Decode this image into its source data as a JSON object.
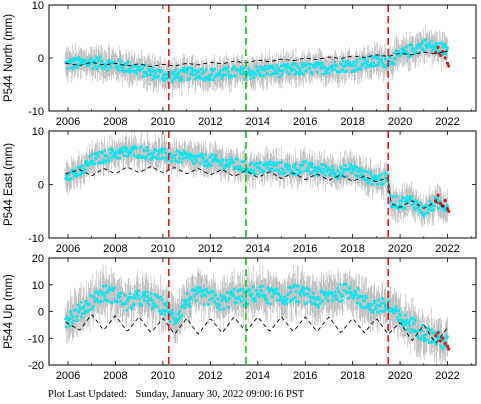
{
  "footer": {
    "label": "Plot Last Updated:",
    "timestamp": "Sunday, January 30, 2022 09:00:16 PST"
  },
  "chart_data": [
    {
      "type": "scatter",
      "ylabel": "P544 North (mm)",
      "xlim": [
        2005.2,
        2023.2
      ],
      "ylim": [
        -10,
        10
      ],
      "yticks": [
        -10,
        0,
        10
      ],
      "xticks": [
        2006,
        2008,
        2010,
        2012,
        2014,
        2016,
        2018,
        2020,
        2022
      ],
      "grid": false,
      "vlines": [
        {
          "x": 2010.25,
          "color": "#d62020",
          "style": "dashed"
        },
        {
          "x": 2013.5,
          "color": "#22bb22",
          "style": "dashed"
        },
        {
          "x": 2019.5,
          "color": "#d62020",
          "style": "dashed"
        }
      ],
      "series": [
        {
          "role": "observations",
          "color": "#00e5f0",
          "error_color": "#b4b4b4",
          "error_mm": 2.6,
          "x": [
            2005.9,
            2006.5,
            2007.0,
            2007.5,
            2008.0,
            2008.5,
            2009.0,
            2009.5,
            2010.0,
            2010.5,
            2011.0,
            2011.5,
            2012.0,
            2012.5,
            2013.0,
            2013.5,
            2014.0,
            2014.5,
            2015.0,
            2015.5,
            2016.0,
            2016.5,
            2017.0,
            2017.5,
            2018.0,
            2018.5,
            2019.0,
            2019.5,
            2020.0,
            2020.5,
            2021.0,
            2021.5,
            2022.0
          ],
          "y": [
            -1.2,
            -1.0,
            -0.8,
            -1.0,
            -1.3,
            -1.7,
            -2.2,
            -2.8,
            -3.2,
            -3.4,
            -3.0,
            -2.8,
            -3.1,
            -3.0,
            -2.7,
            -2.9,
            -2.6,
            -2.4,
            -2.4,
            -2.2,
            -2.1,
            -2.0,
            -1.8,
            -1.5,
            -1.4,
            -1.0,
            -0.7,
            -0.5,
            0.5,
            1.5,
            2.5,
            2.0,
            1.5
          ]
        },
        {
          "role": "model",
          "color": "#000000",
          "style": "dashed",
          "x": [
            2005.9,
            2006.5,
            2007.0,
            2007.5,
            2008.0,
            2008.5,
            2009.0,
            2009.5,
            2010.0,
            2010.5,
            2011.0,
            2011.5,
            2012.0,
            2012.5,
            2013.0,
            2013.5,
            2014.0,
            2014.5,
            2015.0,
            2015.5,
            2016.0,
            2016.5,
            2017.0,
            2017.5,
            2018.0,
            2018.5,
            2019.0,
            2019.5,
            2020.0,
            2020.5,
            2021.0,
            2021.5,
            2022.0
          ],
          "y": [
            -1.0,
            -1.4,
            -0.8,
            -1.3,
            -1.0,
            -1.5,
            -1.1,
            -1.6,
            -1.2,
            -1.5,
            -1.0,
            -1.3,
            -0.8,
            -1.1,
            -0.6,
            -0.9,
            -0.4,
            -0.7,
            -0.2,
            -0.5,
            0.0,
            -0.3,
            0.2,
            -0.1,
            0.4,
            0.1,
            0.6,
            0.3,
            0.9,
            0.6,
            1.1,
            0.8,
            1.3
          ]
        },
        {
          "role": "recent",
          "color": "#cc1a1a",
          "x": [
            2021.5,
            2021.6,
            2021.7,
            2021.8,
            2021.9,
            2022.0,
            2022.05
          ],
          "y": [
            1.0,
            2.0,
            0.5,
            1.2,
            0.0,
            -1.0,
            -1.5
          ]
        }
      ]
    },
    {
      "type": "scatter",
      "ylabel": "P544 East (mm)",
      "xlim": [
        2005.2,
        2023.2
      ],
      "ylim": [
        -10,
        10
      ],
      "yticks": [
        -10,
        0,
        10
      ],
      "xticks": [
        2006,
        2008,
        2010,
        2012,
        2014,
        2016,
        2018,
        2020,
        2022
      ],
      "grid": false,
      "vlines": [
        {
          "x": 2010.25,
          "color": "#d62020",
          "style": "dashed"
        },
        {
          "x": 2013.5,
          "color": "#22bb22",
          "style": "dashed"
        },
        {
          "x": 2019.5,
          "color": "#d62020",
          "style": "dashed"
        }
      ],
      "series": [
        {
          "role": "observations",
          "color": "#00e5f0",
          "error_color": "#b4b4b4",
          "error_mm": 2.6,
          "x": [
            2005.9,
            2006.5,
            2007.0,
            2007.5,
            2008.0,
            2008.5,
            2009.0,
            2009.5,
            2010.0,
            2010.5,
            2011.0,
            2011.5,
            2012.0,
            2012.5,
            2013.0,
            2013.5,
            2014.0,
            2014.5,
            2015.0,
            2015.5,
            2016.0,
            2016.5,
            2017.0,
            2017.5,
            2018.0,
            2018.5,
            2019.0,
            2019.5,
            2019.6,
            2020.0,
            2020.5,
            2021.0,
            2021.5,
            2022.0
          ],
          "y": [
            2.0,
            2.2,
            4.5,
            5.2,
            5.8,
            6.0,
            6.2,
            5.8,
            5.5,
            5.2,
            5.0,
            4.6,
            4.5,
            4.0,
            3.8,
            3.2,
            3.0,
            3.4,
            3.0,
            2.8,
            3.2,
            2.6,
            2.8,
            2.2,
            3.0,
            1.5,
            1.0,
            1.0,
            -3.0,
            -3.5,
            -3.0,
            -5.0,
            -3.5,
            -4.0
          ]
        },
        {
          "role": "model",
          "color": "#000000",
          "style": "dashed",
          "x": [
            2005.9,
            2006.5,
            2007.0,
            2007.5,
            2008.0,
            2008.5,
            2009.0,
            2009.5,
            2010.0,
            2010.5,
            2011.0,
            2011.5,
            2012.0,
            2012.5,
            2013.0,
            2013.5,
            2014.0,
            2014.5,
            2015.0,
            2015.5,
            2016.0,
            2016.5,
            2017.0,
            2017.5,
            2018.0,
            2018.5,
            2019.0,
            2019.5,
            2019.6,
            2020.0,
            2020.5,
            2021.0,
            2021.5,
            2022.0
          ],
          "y": [
            2.0,
            2.8,
            1.6,
            3.0,
            2.0,
            3.3,
            2.2,
            3.4,
            2.2,
            3.2,
            2.0,
            3.0,
            1.8,
            2.8,
            1.5,
            2.6,
            1.3,
            2.4,
            1.1,
            2.2,
            0.9,
            2.0,
            0.8,
            1.8,
            0.6,
            1.6,
            0.5,
            1.4,
            -3.5,
            -4.3,
            -3.0,
            -4.5,
            -3.2,
            -4.7
          ]
        },
        {
          "role": "recent",
          "color": "#cc1a1a",
          "x": [
            2021.5,
            2021.6,
            2021.7,
            2021.8,
            2021.9,
            2022.0,
            2022.05
          ],
          "y": [
            -3.0,
            -2.0,
            -3.5,
            -4.0,
            -3.0,
            -4.5,
            -5.0
          ]
        }
      ]
    },
    {
      "type": "scatter",
      "ylabel": "P544 Up (mm)",
      "xlim": [
        2005.2,
        2023.2
      ],
      "ylim": [
        -20,
        20
      ],
      "yticks": [
        -20,
        -10,
        0,
        10,
        20
      ],
      "xticks": [
        2006,
        2008,
        2010,
        2012,
        2014,
        2016,
        2018,
        2020,
        2022
      ],
      "grid": false,
      "vlines": [
        {
          "x": 2010.25,
          "color": "#d62020",
          "style": "dashed"
        },
        {
          "x": 2013.5,
          "color": "#22bb22",
          "style": "dashed"
        },
        {
          "x": 2019.5,
          "color": "#d62020",
          "style": "dashed"
        }
      ],
      "series": [
        {
          "role": "observations",
          "color": "#00e5f0",
          "error_color": "#b4b4b4",
          "error_mm": 7,
          "x": [
            2005.9,
            2006.5,
            2007.0,
            2007.5,
            2008.0,
            2008.5,
            2009.0,
            2009.5,
            2010.0,
            2010.5,
            2011.0,
            2011.5,
            2012.0,
            2012.5,
            2013.0,
            2013.5,
            2014.0,
            2014.5,
            2015.0,
            2015.5,
            2016.0,
            2016.5,
            2017.0,
            2017.5,
            2018.0,
            2018.5,
            2019.0,
            2019.5,
            2020.0,
            2020.5,
            2021.0,
            2021.5,
            2022.0
          ],
          "y": [
            -3.0,
            0.0,
            4.0,
            7.0,
            6.0,
            3.0,
            5.0,
            4.0,
            2.0,
            -3.0,
            4.0,
            6.0,
            5.0,
            3.0,
            6.0,
            5.0,
            7.0,
            6.0,
            5.0,
            7.0,
            6.0,
            4.0,
            6.0,
            7.0,
            8.0,
            3.0,
            2.0,
            2.0,
            -3.0,
            -5.0,
            -8.0,
            -10.0,
            -12.0
          ]
        },
        {
          "role": "model",
          "color": "#000000",
          "style": "dashed",
          "x": [
            2005.9,
            2006.5,
            2007.0,
            2007.5,
            2008.0,
            2008.5,
            2009.0,
            2009.5,
            2010.0,
            2010.5,
            2011.0,
            2011.5,
            2012.0,
            2012.5,
            2013.0,
            2013.5,
            2014.0,
            2014.5,
            2015.0,
            2015.5,
            2016.0,
            2016.5,
            2017.0,
            2017.5,
            2018.0,
            2018.5,
            2019.0,
            2019.5,
            2020.0,
            2020.5,
            2021.0,
            2021.5,
            2022.0
          ],
          "y": [
            -4.0,
            -7.0,
            -1.0,
            -7.0,
            -1.5,
            -7.5,
            -2.0,
            -8.0,
            -2.5,
            -8.5,
            -2.5,
            -8.5,
            -2.5,
            -8.0,
            -2.0,
            -7.5,
            -2.0,
            -7.5,
            -2.0,
            -7.5,
            -2.0,
            -7.5,
            -2.0,
            -8.0,
            -2.5,
            -8.0,
            -2.5,
            -8.5,
            -4.0,
            -11.0,
            -5.0,
            -12.0,
            -6.0
          ]
        },
        {
          "role": "recent",
          "color": "#cc1a1a",
          "x": [
            2021.5,
            2021.6,
            2021.7,
            2021.8,
            2021.9,
            2022.0,
            2022.05
          ],
          "y": [
            -9.0,
            -8.0,
            -11.0,
            -10.0,
            -12.0,
            -13.0,
            -14.0
          ]
        }
      ]
    }
  ]
}
